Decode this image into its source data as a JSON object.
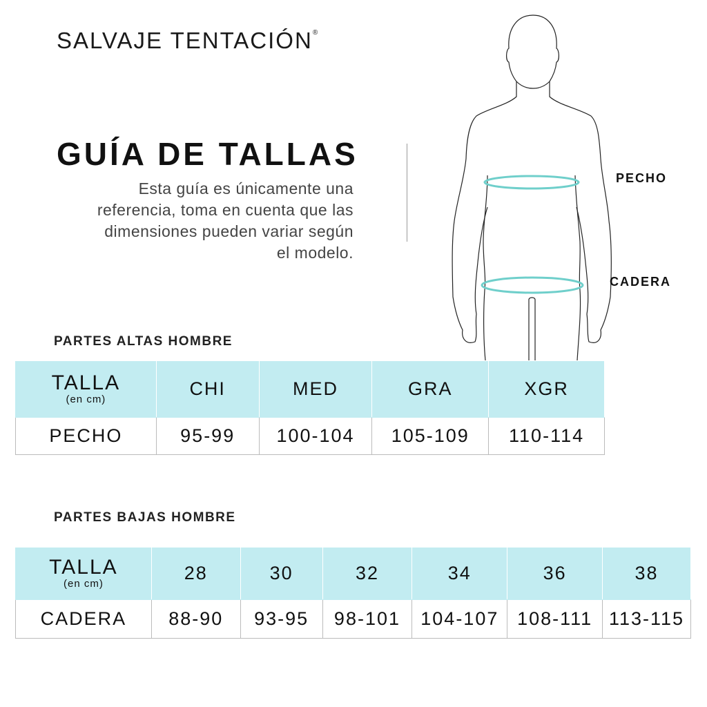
{
  "brand": {
    "name": "SALVAJE TENTACIÓN",
    "mark": "®"
  },
  "title": "GUÍA DE TALLAS",
  "description": [
    "Esta guía es únicamente una",
    "referencia, toma en cuenta que las",
    "dimensiones pueden variar según",
    "el modelo."
  ],
  "figure": {
    "labels": {
      "chest": "PECHO",
      "hip": "CADERA"
    },
    "measure_color": "#6fcfcb"
  },
  "colors": {
    "header_bg": "#c2ecf1"
  },
  "upper": {
    "section": "PARTES ALTAS HOMBRE",
    "header": {
      "label": "TALLA",
      "unit": "(en cm)",
      "sizes": [
        "CHI",
        "MED",
        "GRA",
        "XGR"
      ]
    },
    "row": {
      "label": "PECHO",
      "values": [
        "95-99",
        "100-104",
        "105-109",
        "110-114"
      ]
    }
  },
  "lower": {
    "section": "PARTES BAJAS HOMBRE",
    "header": {
      "label": "TALLA",
      "unit": "(en cm)",
      "sizes": [
        "28",
        "30",
        "32",
        "34",
        "36",
        "38"
      ]
    },
    "row": {
      "label": "CADERA",
      "values": [
        "88-90",
        "93-95",
        "98-101",
        "104-107",
        "108-111",
        "113-115"
      ]
    }
  }
}
